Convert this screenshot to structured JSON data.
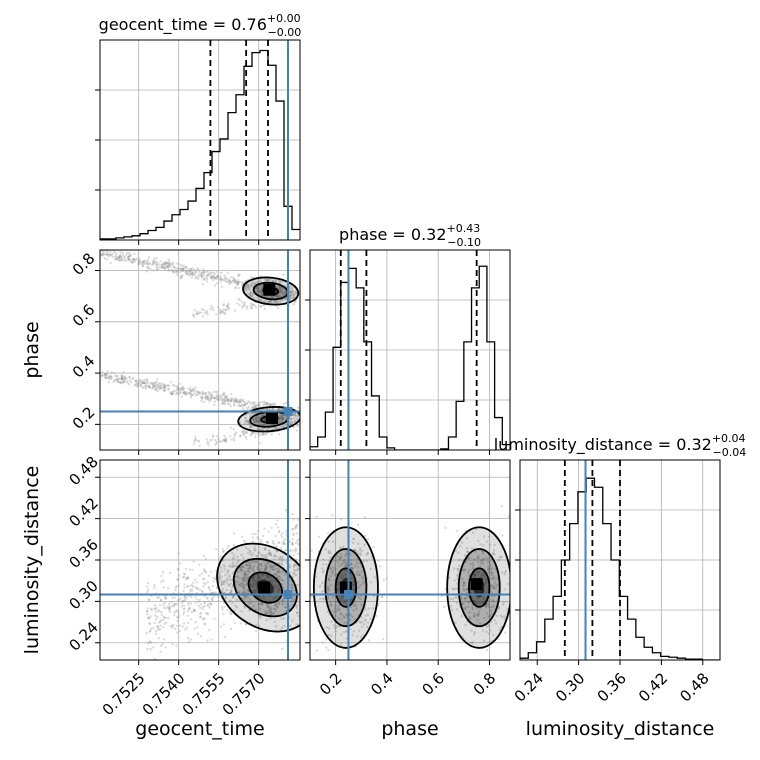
{
  "chart_data": {
    "type": "scatter",
    "kind": "corner",
    "parameters": [
      "geocent_time",
      "phase",
      "luminosity_distance"
    ],
    "truths": {
      "geocent_time": 0.7581,
      "phase": 0.25,
      "luminosity_distance": 0.31
    },
    "titles": {
      "geocent_time": {
        "name": "geocent_time",
        "median": "0.76",
        "plus": "+0.00",
        "minus": "−0.00"
      },
      "phase": {
        "name": "phase",
        "median": "0.32",
        "plus": "+0.43",
        "minus": "−0.10"
      },
      "luminosity_distance": {
        "name": "luminosity_distance",
        "median": "0.32",
        "plus": "+0.04",
        "minus": "−0.04"
      }
    },
    "axes": {
      "geocent_time": {
        "label": "geocent_time",
        "range": [
          0.75105,
          0.75855
        ],
        "ticks": [
          0.7525,
          0.754,
          0.7555,
          0.757
        ],
        "tick_labels": [
          "0.7525",
          "0.7540",
          "0.7555",
          "0.7570"
        ]
      },
      "phase": {
        "label": "phase",
        "range": [
          0.1,
          0.88
        ],
        "ticks": [
          0.2,
          0.4,
          0.6,
          0.8
        ],
        "tick_labels": [
          "0.2",
          "0.4",
          "0.6",
          "0.8"
        ]
      },
      "luminosity_distance": {
        "label": "luminosity_distance",
        "range": [
          0.215,
          0.505
        ],
        "ticks": [
          0.24,
          0.3,
          0.36,
          0.42,
          0.48
        ],
        "tick_labels": [
          "0.24",
          "0.30",
          "0.36",
          "0.42",
          "0.48"
        ]
      }
    },
    "quantiles": {
      "geocent_time": [
        0.75519,
        0.75653,
        0.75735
      ],
      "phase": [
        0.22,
        0.32,
        0.75
      ],
      "luminosity_distance": [
        0.28,
        0.32,
        0.36
      ]
    },
    "histograms": {
      "geocent_time": {
        "edges": [
          0.75105,
          0.75135,
          0.75165,
          0.75195,
          0.75225,
          0.75255,
          0.75285,
          0.75315,
          0.75345,
          0.75375,
          0.75405,
          0.75435,
          0.75465,
          0.75495,
          0.75525,
          0.75555,
          0.75585,
          0.75615,
          0.75645,
          0.75675,
          0.75705,
          0.75735,
          0.75765,
          0.75795,
          0.75825,
          0.75855
        ],
        "counts": [
          1,
          1,
          2,
          3,
          4,
          6,
          9,
          12,
          18,
          24,
          29,
          37,
          49,
          64,
          84,
          96,
          121,
          138,
          165,
          178,
          180,
          166,
          132,
          32,
          10
        ],
        "ymax": 190
      },
      "phase": {
        "edges": [
          0.1,
          0.13,
          0.16,
          0.19,
          0.22,
          0.25,
          0.28,
          0.31,
          0.34,
          0.37,
          0.4,
          0.43,
          0.46,
          0.49,
          0.52,
          0.55,
          0.58,
          0.61,
          0.64,
          0.67,
          0.7,
          0.73,
          0.76,
          0.79,
          0.82,
          0.85,
          0.88
        ],
        "counts": [
          3,
          12,
          35,
          95,
          155,
          168,
          150,
          100,
          50,
          12,
          2,
          0,
          0,
          0,
          0,
          0,
          0,
          1,
          12,
          45,
          100,
          150,
          170,
          100,
          30,
          5
        ],
        "ymax": 185
      },
      "luminosity_distance": {
        "edges": [
          0.215,
          0.227,
          0.239,
          0.251,
          0.263,
          0.275,
          0.287,
          0.299,
          0.311,
          0.323,
          0.335,
          0.347,
          0.359,
          0.371,
          0.383,
          0.395,
          0.407,
          0.419,
          0.431,
          0.443,
          0.455,
          0.467,
          0.479,
          0.491,
          0.503
        ],
        "counts": [
          2,
          8,
          20,
          45,
          70,
          110,
          150,
          185,
          200,
          190,
          150,
          110,
          70,
          45,
          25,
          14,
          8,
          4,
          3,
          2,
          1,
          1,
          0,
          0
        ],
        "ymax": 220
      }
    },
    "pairs": [
      {
        "x": "geocent_time",
        "y": "phase",
        "blobs": [
          {
            "cx": 0.75745,
            "cy": 0.72,
            "sx": 0.0004,
            "sy": 0.02,
            "rot": -6,
            "levels": [
              2.6,
              1.6,
              0.7
            ],
            "peak": [
              0.7574,
              0.725
            ]
          },
          {
            "cx": 0.7574,
            "cy": 0.22,
            "sx": 0.00045,
            "sy": 0.018,
            "rot": 5,
            "levels": [
              2.6,
              1.6,
              0.7
            ],
            "peak": [
              0.7575,
              0.225
            ]
          }
        ],
        "spread": [
          {
            "from": [
              0.7511,
              0.87
            ],
            "to": [
              0.7585,
              0.7
            ],
            "width": 0.025,
            "n": 500
          },
          {
            "from": [
              0.7511,
              0.39
            ],
            "to": [
              0.7585,
              0.24
            ],
            "width": 0.022,
            "n": 500
          },
          {
            "from": [
              0.7545,
              0.63
            ],
            "to": [
              0.7585,
              0.7
            ],
            "width": 0.02,
            "n": 120
          },
          {
            "from": [
              0.7545,
              0.12
            ],
            "to": [
              0.7585,
              0.2
            ],
            "width": 0.02,
            "n": 120
          }
        ]
      },
      {
        "x": "geocent_time",
        "y": "luminosity_distance",
        "blobs": [
          {
            "cx": 0.75725,
            "cy": 0.32,
            "sx": 0.00075,
            "sy": 0.022,
            "rot": -35,
            "levels": [
              2.6,
              1.7,
              0.9
            ],
            "peak": [
              0.7572,
              0.32
            ]
          }
        ],
        "spread": [
          {
            "from": [
              0.7528,
              0.27
            ],
            "to": [
              0.7585,
              0.37
            ],
            "width": 0.055,
            "n": 700
          }
        ]
      },
      {
        "x": "phase",
        "y": "luminosity_distance",
        "blobs": [
          {
            "cx": 0.24,
            "cy": 0.32,
            "sx": 0.05,
            "sy": 0.035,
            "rot": 0,
            "levels": [
              2.5,
              1.6,
              0.8
            ],
            "peak": [
              0.24,
              0.32
            ]
          },
          {
            "cx": 0.76,
            "cy": 0.32,
            "sx": 0.05,
            "sy": 0.035,
            "rot": 0,
            "levels": [
              2.5,
              1.6,
              0.8
            ],
            "peak": [
              0.75,
              0.325
            ]
          }
        ],
        "spread": []
      }
    ]
  }
}
